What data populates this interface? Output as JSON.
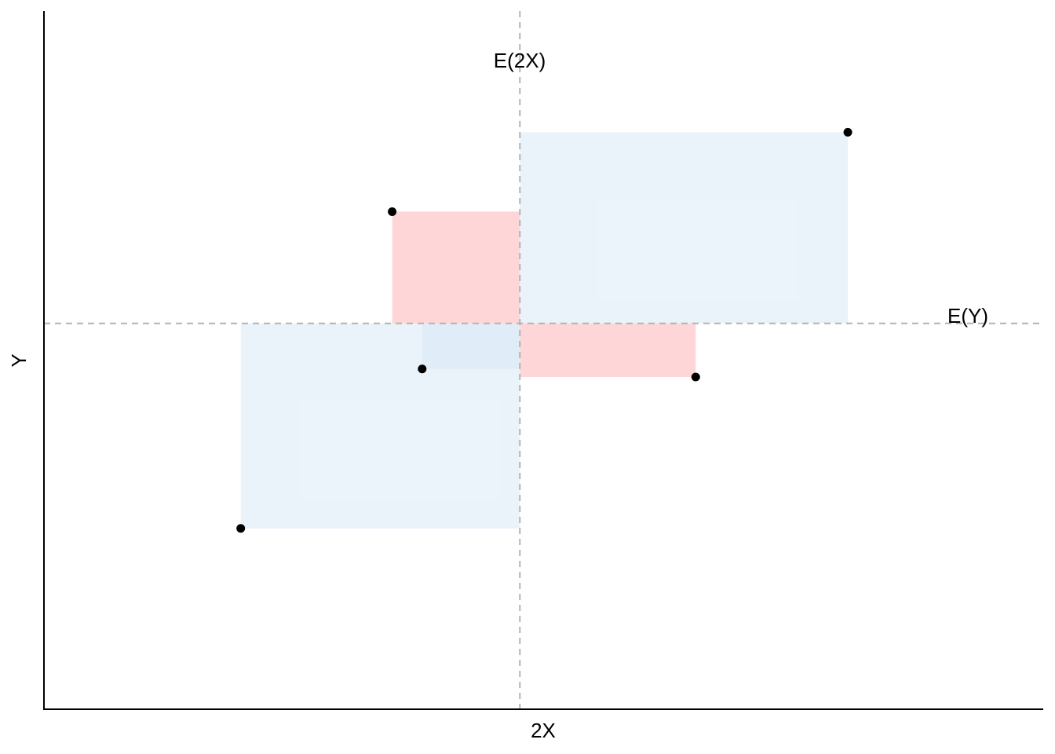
{
  "chart_data": {
    "type": "scatter",
    "title": "",
    "xlabel": "2X",
    "ylabel": "Y",
    "xlim": [
      -6.32,
      8.0
    ],
    "ylim": [
      -5.0,
      4.5
    ],
    "grid": false,
    "mean_x": 0.5,
    "mean_y": 0.25,
    "mean_x_label": "E(2X)",
    "mean_y_label": "E(Y)",
    "points": [
      {
        "x": 5.2,
        "y": 2.85
      },
      {
        "x": -1.33,
        "y": 1.77
      },
      {
        "x": -0.9,
        "y": -0.37
      },
      {
        "x": 3.02,
        "y": -0.48
      },
      {
        "x": -3.5,
        "y": -2.54
      }
    ],
    "colors": {
      "positive_product": "#d6e8f6",
      "negative_product": "#ffaeb0",
      "points": "#000000",
      "mean_lines": "#b3b3b3",
      "axes": "#000000"
    }
  }
}
